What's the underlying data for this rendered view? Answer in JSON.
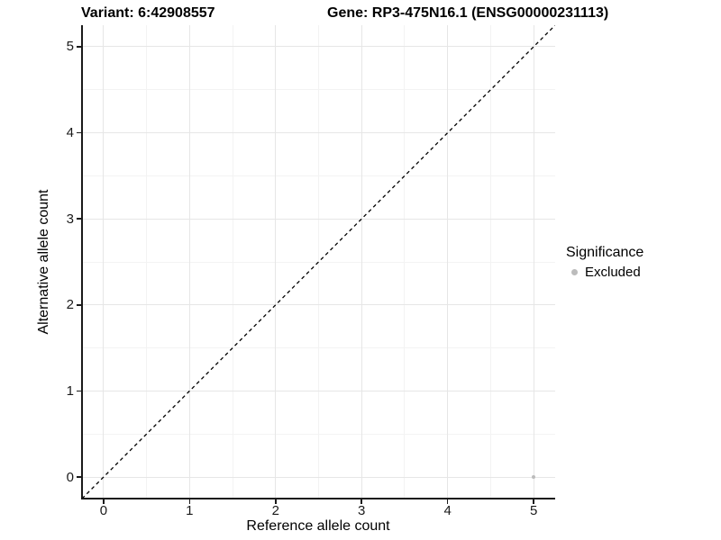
{
  "titles": {
    "variant": "Variant: 6:42908557",
    "gene": "Gene: RP3-475N16.1 (ENSG00000231113)"
  },
  "legend": {
    "title": "Significance",
    "position": "right",
    "items": [
      {
        "label": "Excluded",
        "color": "#bcbcbc"
      }
    ]
  },
  "colors": {
    "point": "#bcbcbc",
    "grid_major": "#e6e6e6",
    "grid_minor": "#f3f3f3",
    "axis": "#1a1a1a",
    "reference_line": "#000000",
    "text": "#000000"
  },
  "chart_data": {
    "type": "scatter",
    "title_left": "Variant: 6:42908557",
    "title_right": "Gene: RP3-475N16.1 (ENSG00000231113)",
    "xlabel": "Reference allele count",
    "ylabel": "Alternative allele count",
    "xlim": [
      -0.25,
      5.25
    ],
    "ylim": [
      -0.25,
      5.25
    ],
    "x_ticks": [
      0,
      1,
      2,
      3,
      4,
      5
    ],
    "y_ticks": [
      0,
      1,
      2,
      3,
      4,
      5
    ],
    "x_minor_ticks": [
      0.5,
      1.5,
      2.5,
      3.5,
      4.5
    ],
    "y_minor_ticks": [
      0.5,
      1.5,
      2.5,
      3.5,
      4.5
    ],
    "grid": "major+minor",
    "legend_position": "right",
    "series": [
      {
        "name": "Excluded",
        "color": "#bcbcbc",
        "point_size": 4.5,
        "points": [
          {
            "x": 5,
            "y": 0
          }
        ]
      }
    ],
    "reference_line": {
      "kind": "identity",
      "style": "dashed",
      "color": "#000000",
      "from": {
        "x": -0.25,
        "y": -0.25
      },
      "to": {
        "x": 5.25,
        "y": 5.25
      }
    }
  }
}
